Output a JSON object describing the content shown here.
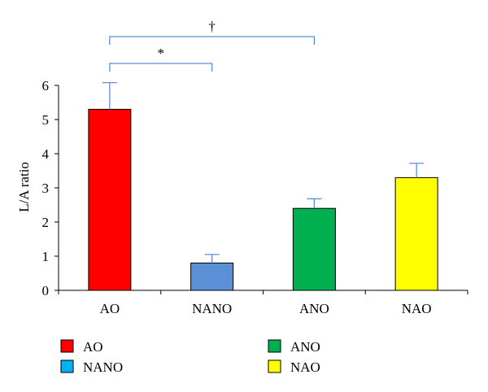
{
  "chart_data": {
    "type": "bar",
    "categories": [
      "AO",
      "NANO",
      "ANO",
      "NAO"
    ],
    "values": [
      5.3,
      0.8,
      2.4,
      3.3
    ],
    "errors": [
      0.78,
      0.25,
      0.28,
      0.42
    ],
    "colors": [
      "#ff0000",
      "#5b8fd6",
      "#00b050",
      "#ffff00"
    ],
    "ylabel": "L/A ratio",
    "ylim": [
      0,
      6
    ],
    "yticks": [
      "0",
      "1",
      "2",
      "3",
      "4",
      "5",
      "6"
    ],
    "grid": false,
    "legend": {
      "placement": "bottom",
      "entries": [
        {
          "name": "AO",
          "color": "#ff0000"
        },
        {
          "name": "NANO",
          "color": "#00b0f0"
        },
        {
          "name": "ANO",
          "color": "#00b050"
        },
        {
          "name": "NAO",
          "color": "#ffff00"
        }
      ]
    },
    "annotations": [
      {
        "symbol": "*",
        "from": "AO",
        "to": "NANO"
      },
      {
        "symbol": "†",
        "from": "AO",
        "to": "ANO"
      }
    ],
    "error_bar_color": "#5b8fd6",
    "bracket_color": "#5b8fd6"
  }
}
